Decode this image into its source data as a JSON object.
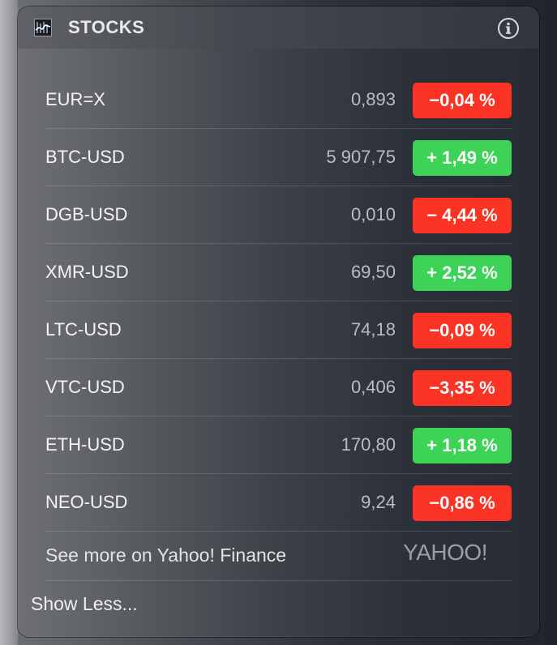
{
  "header": {
    "title": "STOCKS",
    "app_icon": "stocks-chart-icon",
    "info_icon": "info-icon"
  },
  "stocks": [
    {
      "symbol": "EUR=X",
      "price": "0,893",
      "change": "−0,04 %",
      "direction": "down"
    },
    {
      "symbol": "BTC-USD",
      "price": "5 907,75",
      "change": "+ 1,49 %",
      "direction": "up"
    },
    {
      "symbol": "DGB-USD",
      "price": "0,010",
      "change": "− 4,44 %",
      "direction": "down"
    },
    {
      "symbol": "XMR-USD",
      "price": "69,50",
      "change": "+ 2,52 %",
      "direction": "up"
    },
    {
      "symbol": "LTC-USD",
      "price": "74,18",
      "change": "−0,09 %",
      "direction": "down"
    },
    {
      "symbol": "VTC-USD",
      "price": "0,406",
      "change": "−3,35 %",
      "direction": "down"
    },
    {
      "symbol": "ETH-USD",
      "price": "170,80",
      "change": "+ 1,18 %",
      "direction": "up"
    },
    {
      "symbol": "NEO-USD",
      "price": "9,24",
      "change": "−0,86 %",
      "direction": "down"
    }
  ],
  "footer": {
    "more_link": "See more on Yahoo! Finance",
    "logo_text": "YAHOO!",
    "show_less": "Show Less..."
  },
  "colors": {
    "down": "#fb3324",
    "up": "#3cd357"
  }
}
